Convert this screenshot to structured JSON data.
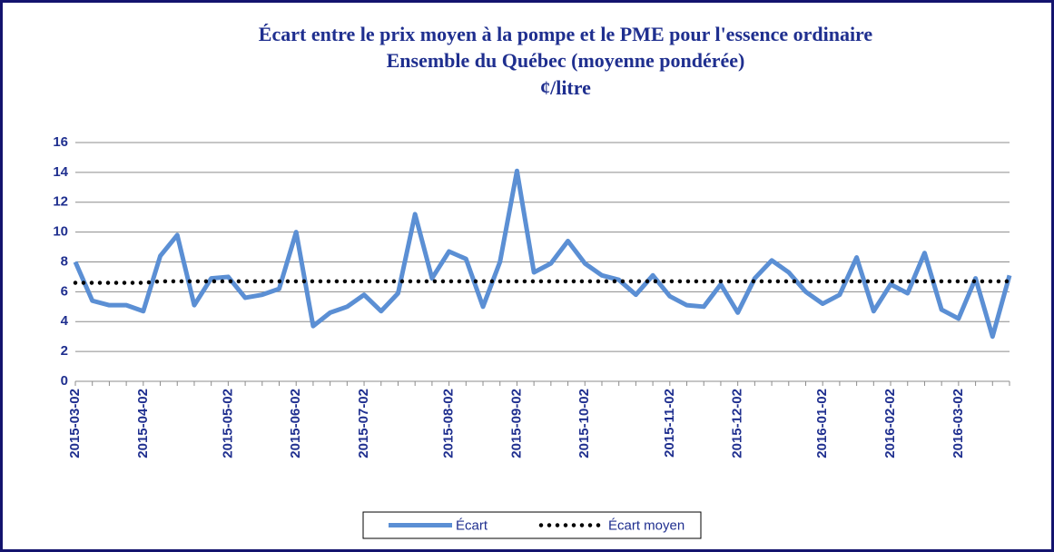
{
  "chart_data": {
    "type": "line",
    "title": [
      "Écart entre le prix moyen à la pompe et le PME pour l'essence ordinaire",
      "Ensemble du Québec (moyenne pondérée)",
      "¢/litre"
    ],
    "categories": [
      "2015-03-02",
      null,
      null,
      null,
      "2015-04-02",
      null,
      null,
      null,
      null,
      "2015-05-02",
      null,
      null,
      null,
      "2015-06-02",
      null,
      null,
      null,
      "2015-07-02",
      null,
      null,
      null,
      null,
      "2015-08-02",
      null,
      null,
      null,
      "2015-09-02",
      null,
      null,
      null,
      "2015-10-02",
      null,
      null,
      null,
      null,
      "2015-11-02",
      null,
      null,
      null,
      "2015-12-02",
      null,
      null,
      null,
      null,
      "2016-01-02",
      null,
      null,
      null,
      "2016-02-02",
      null,
      null,
      null,
      "2016-03-02",
      null,
      null,
      null
    ],
    "series": [
      {
        "name": "Écart",
        "color": "#5b8fd4",
        "style": "solid",
        "values": [
          8.0,
          5.4,
          5.1,
          5.1,
          4.7,
          8.4,
          9.8,
          5.1,
          6.9,
          7.0,
          5.6,
          5.8,
          6.2,
          10.0,
          3.7,
          4.6,
          5.0,
          5.8,
          4.7,
          5.9,
          11.2,
          6.9,
          8.7,
          8.2,
          5.0,
          8.0,
          14.1,
          7.3,
          7.9,
          9.4,
          7.9,
          7.1,
          6.8,
          5.8,
          7.1,
          5.7,
          5.1,
          5.0,
          6.5,
          4.6,
          6.9,
          8.1,
          7.3,
          6.0,
          5.2,
          5.8,
          8.3,
          4.7,
          6.5,
          5.9,
          8.6,
          4.8,
          4.2,
          6.9,
          3.0,
          7.1
        ]
      },
      {
        "name": "Écart moyen",
        "color": "#000000",
        "style": "dotted",
        "values": [
          6.6,
          6.6,
          6.6,
          6.6,
          6.6,
          6.7,
          6.7,
          6.7,
          6.7,
          6.7,
          6.7,
          6.7,
          6.7,
          6.7,
          6.7,
          6.7,
          6.7,
          6.7,
          6.7,
          6.7,
          6.7,
          6.7,
          6.7,
          6.7,
          6.7,
          6.7,
          6.7,
          6.7,
          6.7,
          6.7,
          6.7,
          6.7,
          6.7,
          6.7,
          6.7,
          6.7,
          6.7,
          6.7,
          6.7,
          6.7,
          6.7,
          6.7,
          6.7,
          6.7,
          6.7,
          6.7,
          6.7,
          6.7,
          6.7,
          6.7,
          6.7,
          6.7,
          6.7,
          6.7,
          6.7,
          6.7
        ]
      }
    ],
    "ylim": [
      0,
      16
    ],
    "yticks": [
      0,
      2,
      4,
      6,
      8,
      10,
      12,
      14,
      16
    ],
    "grid": true,
    "legend": "bottom"
  }
}
